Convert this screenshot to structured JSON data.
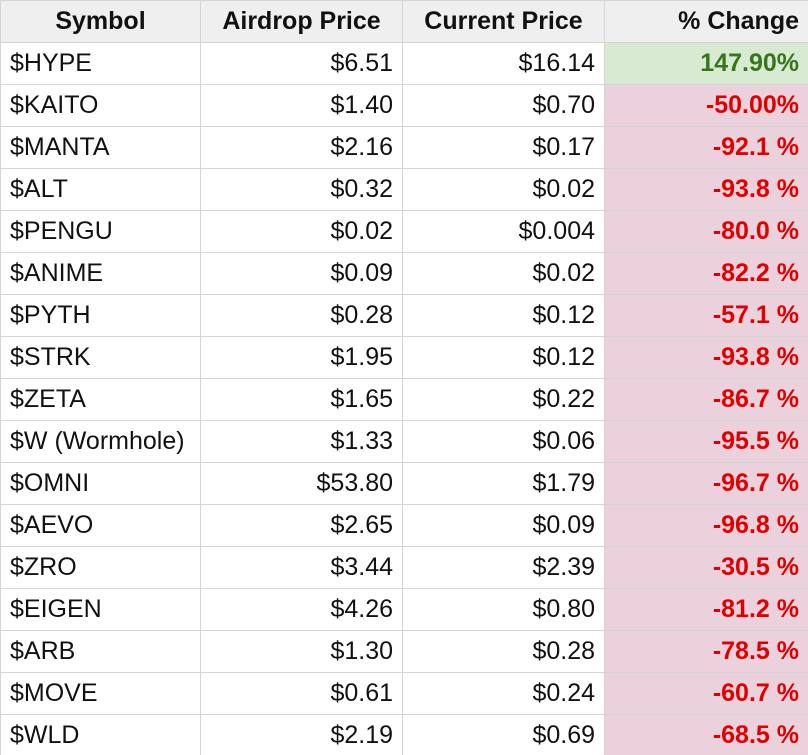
{
  "table": {
    "headers": {
      "symbol": "Symbol",
      "airdrop_price": "Airdrop Price",
      "current_price": "Current Price",
      "change": "% Change"
    },
    "colors": {
      "header_bg": "#efefef",
      "positive_bg": "#d9ead3",
      "positive_text": "#38761d",
      "negative_bg": "#ead1dc",
      "negative_text": "#e00000",
      "grid_line": "#d4d4d4"
    },
    "rows": [
      {
        "symbol": "$HYPE",
        "airdrop_price": "$6.51",
        "current_price": "$16.14",
        "change": "147.90%",
        "direction": "positive"
      },
      {
        "symbol": "$KAITO",
        "airdrop_price": "$1.40",
        "current_price": "$0.70",
        "change": "-50.00%",
        "direction": "negative"
      },
      {
        "symbol": "$MANTA",
        "airdrop_price": "$2.16",
        "current_price": "$0.17",
        "change": "-92.1 %",
        "direction": "negative"
      },
      {
        "symbol": "$ALT",
        "airdrop_price": "$0.32",
        "current_price": "$0.02",
        "change": "-93.8 %",
        "direction": "negative"
      },
      {
        "symbol": "$PENGU",
        "airdrop_price": "$0.02",
        "current_price": "$0.004",
        "change": "-80.0 %",
        "direction": "negative"
      },
      {
        "symbol": "$ANIME",
        "airdrop_price": "$0.09",
        "current_price": "$0.02",
        "change": "-82.2 %",
        "direction": "negative"
      },
      {
        "symbol": "$PYTH",
        "airdrop_price": "$0.28",
        "current_price": "$0.12",
        "change": "-57.1 %",
        "direction": "negative"
      },
      {
        "symbol": "$STRK",
        "airdrop_price": "$1.95",
        "current_price": "$0.12",
        "change": "-93.8 %",
        "direction": "negative"
      },
      {
        "symbol": "$ZETA",
        "airdrop_price": "$1.65",
        "current_price": "$0.22",
        "change": "-86.7 %",
        "direction": "negative"
      },
      {
        "symbol": "$W (Wormhole)",
        "airdrop_price": "$1.33",
        "current_price": "$0.06",
        "change": "-95.5 %",
        "direction": "negative"
      },
      {
        "symbol": "$OMNI",
        "airdrop_price": "$53.80",
        "current_price": "$1.79",
        "change": "-96.7 %",
        "direction": "negative"
      },
      {
        "symbol": "$AEVO",
        "airdrop_price": "$2.65",
        "current_price": "$0.09",
        "change": "-96.8 %",
        "direction": "negative"
      },
      {
        "symbol": "$ZRO",
        "airdrop_price": "$3.44",
        "current_price": "$2.39",
        "change": "-30.5 %",
        "direction": "negative"
      },
      {
        "symbol": "$EIGEN",
        "airdrop_price": "$4.26",
        "current_price": "$0.80",
        "change": "-81.2 %",
        "direction": "negative"
      },
      {
        "symbol": "$ARB",
        "airdrop_price": "$1.30",
        "current_price": "$0.28",
        "change": "-78.5 %",
        "direction": "negative"
      },
      {
        "symbol": "$MOVE",
        "airdrop_price": "$0.61",
        "current_price": "$0.24",
        "change": "-60.7 %",
        "direction": "negative"
      },
      {
        "symbol": "$WLD",
        "airdrop_price": "$2.19",
        "current_price": "$0.69",
        "change": "-68.5 %",
        "direction": "negative"
      }
    ]
  }
}
